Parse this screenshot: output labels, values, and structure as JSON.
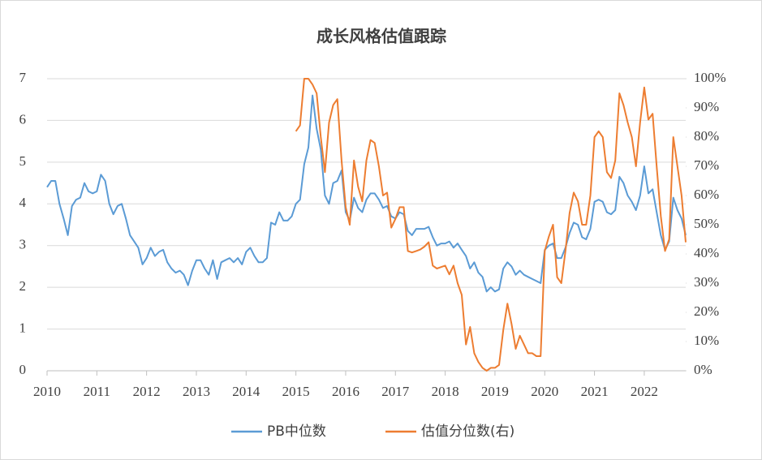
{
  "chart_data": {
    "type": "line",
    "title": "成长风格估值跟踪",
    "x": [
      2010,
      2010.083,
      2010.167,
      2010.25,
      2010.333,
      2010.417,
      2010.5,
      2010.583,
      2010.667,
      2010.75,
      2010.833,
      2010.917,
      2011,
      2011.083,
      2011.167,
      2011.25,
      2011.333,
      2011.417,
      2011.5,
      2011.583,
      2011.667,
      2011.75,
      2011.833,
      2011.917,
      2012,
      2012.083,
      2012.167,
      2012.25,
      2012.333,
      2012.417,
      2012.5,
      2012.583,
      2012.667,
      2012.75,
      2012.833,
      2012.917,
      2013,
      2013.083,
      2013.167,
      2013.25,
      2013.333,
      2013.417,
      2013.5,
      2013.583,
      2013.667,
      2013.75,
      2013.833,
      2013.917,
      2014,
      2014.083,
      2014.167,
      2014.25,
      2014.333,
      2014.417,
      2014.5,
      2014.583,
      2014.667,
      2014.75,
      2014.833,
      2014.917,
      2015,
      2015.083,
      2015.167,
      2015.25,
      2015.333,
      2015.417,
      2015.5,
      2015.583,
      2015.667,
      2015.75,
      2015.833,
      2015.917,
      2016,
      2016.083,
      2016.167,
      2016.25,
      2016.333,
      2016.417,
      2016.5,
      2016.583,
      2016.667,
      2016.75,
      2016.833,
      2016.917,
      2017,
      2017.083,
      2017.167,
      2017.25,
      2017.333,
      2017.417,
      2017.5,
      2017.583,
      2017.667,
      2017.75,
      2017.833,
      2017.917,
      2018,
      2018.083,
      2018.167,
      2018.25,
      2018.333,
      2018.417,
      2018.5,
      2018.583,
      2018.667,
      2018.75,
      2018.833,
      2018.917,
      2019,
      2019.083,
      2019.167,
      2019.25,
      2019.333,
      2019.417,
      2019.5,
      2019.583,
      2019.667,
      2019.75,
      2019.833,
      2019.917,
      2020,
      2020.083,
      2020.167,
      2020.25,
      2020.333,
      2020.417,
      2020.5,
      2020.583,
      2020.667,
      2020.75,
      2020.833,
      2020.917,
      2021,
      2021.083,
      2021.167,
      2021.25,
      2021.333,
      2021.417,
      2021.5,
      2021.583,
      2021.667,
      2021.75,
      2021.833,
      2021.917,
      2022,
      2022.083,
      2022.167,
      2022.25,
      2022.333,
      2022.417,
      2022.5,
      2022.583,
      2022.667,
      2022.75,
      2022.833
    ],
    "xlim": [
      2010,
      2022.833
    ],
    "xticks": [
      2010,
      2011,
      2012,
      2013,
      2014,
      2015,
      2016,
      2017,
      2018,
      2019,
      2020,
      2021,
      2022
    ],
    "ylim": [
      0,
      7
    ],
    "yticks": [
      0,
      1,
      2,
      3,
      4,
      5,
      6,
      7
    ],
    "y2lim": [
      0,
      100
    ],
    "y2ticks": [
      {
        "value": 0,
        "label": "0%"
      },
      {
        "value": 10,
        "label": "10%"
      },
      {
        "value": 20,
        "label": "20%"
      },
      {
        "value": 30,
        "label": "30%"
      },
      {
        "value": 40,
        "label": "40%"
      },
      {
        "value": 50,
        "label": "50%"
      },
      {
        "value": 60,
        "label": "60%"
      },
      {
        "value": 70,
        "label": "70%"
      },
      {
        "value": 80,
        "label": "80%"
      },
      {
        "value": 90,
        "label": "90%"
      },
      {
        "value": 100,
        "label": "100%"
      }
    ],
    "grid": true,
    "legend": "bottom",
    "series": [
      {
        "name": "PB中位数",
        "color": "#5b9bd5",
        "values": [
          4.4,
          4.55,
          4.55,
          4.0,
          3.65,
          3.25,
          3.95,
          4.1,
          4.15,
          4.5,
          4.3,
          4.25,
          4.3,
          4.7,
          4.55,
          4.0,
          3.75,
          3.95,
          4.0,
          3.65,
          3.25,
          3.1,
          2.95,
          2.55,
          2.7,
          2.95,
          2.75,
          2.85,
          2.9,
          2.6,
          2.45,
          2.35,
          2.4,
          2.3,
          2.05,
          2.4,
          2.65,
          2.65,
          2.45,
          2.3,
          2.65,
          2.2,
          2.6,
          2.65,
          2.7,
          2.6,
          2.7,
          2.55,
          2.85,
          2.95,
          2.75,
          2.6,
          2.6,
          2.7,
          3.55,
          3.5,
          3.8,
          3.6,
          3.6,
          3.7,
          4.0,
          4.1,
          4.95,
          5.35,
          6.6,
          5.8,
          5.3,
          4.2,
          4.0,
          4.5,
          4.55,
          4.8,
          3.8,
          3.6,
          4.15,
          3.9,
          3.8,
          4.1,
          4.25,
          4.25,
          4.1,
          3.9,
          3.95,
          3.7,
          3.65,
          3.8,
          3.75,
          3.35,
          3.25,
          3.4,
          3.4,
          3.4,
          3.45,
          3.2,
          3.0,
          3.05,
          3.05,
          3.1,
          2.95,
          3.05,
          2.9,
          2.75,
          2.45,
          2.6,
          2.35,
          2.25,
          1.9,
          2.0,
          1.9,
          1.95,
          2.45,
          2.6,
          2.5,
          2.3,
          2.4,
          2.3,
          2.25,
          2.2,
          2.15,
          2.1,
          2.9,
          3.0,
          3.05,
          2.7,
          2.7,
          2.95,
          3.3,
          3.55,
          3.5,
          3.2,
          3.15,
          3.4,
          4.05,
          4.1,
          4.05,
          3.8,
          3.75,
          3.85,
          4.65,
          4.5,
          4.2,
          4.05,
          3.85,
          4.2,
          4.9,
          4.25,
          4.35,
          3.8,
          3.25,
          2.9,
          3.1,
          4.15,
          3.85,
          3.65,
          3.25
        ]
      },
      {
        "name": "估值分位数(右)",
        "color": "#ed7d31",
        "axis": "y2",
        "values": [
          null,
          null,
          null,
          null,
          null,
          null,
          null,
          null,
          null,
          null,
          null,
          null,
          null,
          null,
          null,
          null,
          null,
          null,
          null,
          null,
          null,
          null,
          null,
          null,
          null,
          null,
          null,
          null,
          null,
          null,
          null,
          null,
          null,
          null,
          null,
          null,
          null,
          null,
          null,
          null,
          null,
          null,
          null,
          null,
          null,
          null,
          null,
          null,
          null,
          null,
          null,
          null,
          null,
          null,
          null,
          null,
          null,
          null,
          null,
          null,
          82,
          84,
          100,
          100,
          98,
          95,
          80,
          68,
          85,
          91,
          93,
          72,
          56,
          50,
          72,
          63,
          58,
          72,
          79,
          78,
          70,
          60,
          61,
          49,
          52,
          56,
          56,
          41,
          40.5,
          41,
          41.5,
          42.5,
          44,
          36,
          35,
          35.5,
          36,
          33,
          36,
          30,
          26,
          9,
          15,
          6,
          3,
          1,
          0,
          1,
          1,
          2,
          14,
          23,
          16,
          7.5,
          12,
          9,
          6,
          6,
          5,
          5,
          41,
          46,
          50,
          32,
          30,
          41,
          54,
          61,
          58,
          50,
          50,
          60,
          80,
          82,
          80,
          68,
          66,
          72,
          95,
          91,
          85,
          80,
          70,
          85,
          97,
          86,
          88,
          70,
          53,
          41,
          45,
          80,
          70,
          60,
          44
        ]
      }
    ]
  }
}
